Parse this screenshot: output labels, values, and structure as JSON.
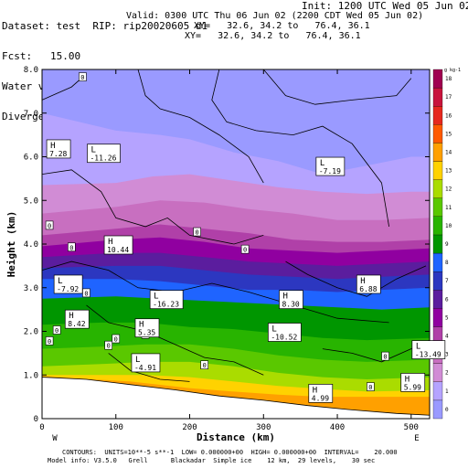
{
  "header": {
    "left_lines": [
      "Dataset: test  RIP: rip20020605 d1",
      "Fcst:   15.00",
      "Water vapor mixing ratio",
      "Divergence"
    ],
    "right_lines": [
      "Init: 1200 UTC Wed 05 Jun 02",
      "Valid: 0300 UTC Thu 06 Jun 02 (2200 CDT Wed 05 Jun 02)",
      "XY=   32.6, 34.2 to   76.4, 36.1",
      "XY=   32.6, 34.2 to   76.4, 36.1"
    ]
  },
  "footer": {
    "line1": "CONTOURS:  UNITS=10**-5 s**-1  LOW= 0.000000+00  HIGH= 0.000000+00  INTERVAL=    20.000",
    "line2": "Model info: V3.5.0   Grell      Blackadar  Simple ice    12 km,  29 levels,    30 sec"
  },
  "chart_data": {
    "type": "heatmap",
    "xlabel": "Distance (km)",
    "ylabel": "Height (km)",
    "xlim": [
      0,
      525
    ],
    "ylim": [
      0,
      8
    ],
    "xticks": [
      0,
      100,
      200,
      300,
      400,
      500
    ],
    "yticks": [
      0,
      1.0,
      2.0,
      3.0,
      4.0,
      5.0,
      6.0,
      7.0,
      8.0
    ],
    "ytick_labels": [
      "0",
      "1.0",
      "2.0",
      "3.0",
      "4.0",
      "5.0",
      "6.0",
      "7.0",
      "8.0"
    ],
    "x_end_labels": [
      "W",
      "E"
    ],
    "colorbar_unit": "g kg-1",
    "colorbar_levels": [
      0,
      1,
      2,
      3,
      4,
      5,
      6,
      7,
      8,
      9,
      10,
      11,
      12,
      13,
      14,
      15,
      16,
      17,
      18
    ],
    "colorbar_colors": [
      "#9a9aff",
      "#b5a3ff",
      "#d18cd5",
      "#c86fc0",
      "#b040a8",
      "#9000a0",
      "#5b1d9e",
      "#2c37c0",
      "#1f64ff",
      "#009600",
      "#28b400",
      "#5ac800",
      "#aadc00",
      "#ffd200",
      "#ffa000",
      "#ff5a00",
      "#e6281e",
      "#c8143c",
      "#a00050"
    ],
    "terrain_profile": [
      [
        0,
        0.95
      ],
      [
        60,
        0.9
      ],
      [
        120,
        0.78
      ],
      [
        180,
        0.66
      ],
      [
        240,
        0.52
      ],
      [
        300,
        0.42
      ],
      [
        360,
        0.3
      ],
      [
        420,
        0.2
      ],
      [
        480,
        0.12
      ],
      [
        525,
        0.08
      ]
    ],
    "moisture_bands": [
      {
        "level": 1,
        "profile": [
          [
            0,
            7.0
          ],
          [
            100,
            6.6
          ],
          [
            160,
            6.5
          ],
          [
            200,
            6.4
          ],
          [
            260,
            6.1
          ],
          [
            320,
            5.9
          ],
          [
            380,
            5.6
          ],
          [
            440,
            5.8
          ],
          [
            500,
            6.0
          ],
          [
            525,
            6.0
          ]
        ]
      },
      {
        "level": 2,
        "profile": [
          [
            0,
            5.35
          ],
          [
            100,
            5.4
          ],
          [
            150,
            5.55
          ],
          [
            200,
            5.6
          ],
          [
            260,
            5.45
          ],
          [
            320,
            5.3
          ],
          [
            380,
            5.2
          ],
          [
            440,
            5.15
          ],
          [
            500,
            5.2
          ],
          [
            525,
            5.2
          ]
        ]
      },
      {
        "level": 3,
        "profile": [
          [
            0,
            4.7
          ],
          [
            100,
            4.85
          ],
          [
            160,
            5.0
          ],
          [
            220,
            4.95
          ],
          [
            280,
            4.8
          ],
          [
            340,
            4.7
          ],
          [
            400,
            4.55
          ],
          [
            460,
            4.55
          ],
          [
            525,
            4.6
          ]
        ]
      },
      {
        "level": 4,
        "profile": [
          [
            0,
            4.2
          ],
          [
            100,
            4.35
          ],
          [
            160,
            4.45
          ],
          [
            220,
            4.35
          ],
          [
            280,
            4.25
          ],
          [
            340,
            4.1
          ],
          [
            400,
            4.05
          ],
          [
            460,
            4.05
          ],
          [
            525,
            4.1
          ]
        ]
      },
      {
        "level": 5,
        "profile": [
          [
            0,
            3.95
          ],
          [
            100,
            4.1
          ],
          [
            160,
            4.15
          ],
          [
            220,
            4.05
          ],
          [
            280,
            3.9
          ],
          [
            340,
            3.85
          ],
          [
            400,
            3.8
          ],
          [
            460,
            3.85
          ],
          [
            525,
            3.9
          ]
        ]
      },
      {
        "level": 6,
        "profile": [
          [
            0,
            3.7
          ],
          [
            100,
            3.8
          ],
          [
            160,
            3.8
          ],
          [
            220,
            3.7
          ],
          [
            280,
            3.6
          ],
          [
            340,
            3.55
          ],
          [
            400,
            3.5
          ],
          [
            460,
            3.55
          ],
          [
            525,
            3.6
          ]
        ]
      },
      {
        "level": 7,
        "profile": [
          [
            0,
            3.45
          ],
          [
            100,
            3.5
          ],
          [
            160,
            3.5
          ],
          [
            220,
            3.4
          ],
          [
            280,
            3.3
          ],
          [
            340,
            3.25
          ],
          [
            400,
            3.2
          ],
          [
            460,
            3.25
          ],
          [
            525,
            3.3
          ]
        ]
      },
      {
        "level": 8,
        "profile": [
          [
            0,
            3.2
          ],
          [
            100,
            3.2
          ],
          [
            160,
            3.15
          ],
          [
            220,
            3.05
          ],
          [
            280,
            2.95
          ],
          [
            340,
            2.95
          ],
          [
            400,
            2.9
          ],
          [
            460,
            2.95
          ],
          [
            525,
            3.0
          ]
        ]
      },
      {
        "level": 9,
        "profile": [
          [
            0,
            2.75
          ],
          [
            100,
            2.8
          ],
          [
            160,
            2.75
          ],
          [
            220,
            2.7
          ],
          [
            280,
            2.65
          ],
          [
            340,
            2.6
          ],
          [
            400,
            2.55
          ],
          [
            460,
            2.5
          ],
          [
            525,
            2.55
          ]
        ]
      },
      {
        "level": 10,
        "profile": [
          [
            0,
            2.15
          ],
          [
            80,
            2.2
          ],
          [
            140,
            2.2
          ],
          [
            200,
            2.1
          ],
          [
            260,
            2.05
          ],
          [
            320,
            1.95
          ],
          [
            380,
            1.85
          ],
          [
            440,
            1.8
          ],
          [
            525,
            1.85
          ]
        ]
      },
      {
        "level": 11,
        "profile": [
          [
            0,
            1.6
          ],
          [
            80,
            1.65
          ],
          [
            140,
            1.7
          ],
          [
            200,
            1.7
          ],
          [
            260,
            1.6
          ],
          [
            320,
            1.45
          ],
          [
            380,
            1.35
          ],
          [
            440,
            1.3
          ],
          [
            525,
            1.35
          ]
        ]
      },
      {
        "level": 12,
        "profile": [
          [
            0,
            1.2
          ],
          [
            80,
            1.25
          ],
          [
            140,
            1.3
          ],
          [
            200,
            1.3
          ],
          [
            260,
            1.2
          ],
          [
            320,
            1.05
          ],
          [
            380,
            0.95
          ],
          [
            440,
            0.9
          ],
          [
            525,
            0.95
          ]
        ]
      },
      {
        "level": 13,
        "profile": [
          [
            0,
            1.0
          ],
          [
            80,
            1.0
          ],
          [
            140,
            1.0
          ],
          [
            200,
            0.95
          ],
          [
            260,
            0.85
          ],
          [
            320,
            0.75
          ],
          [
            380,
            0.68
          ],
          [
            440,
            0.62
          ],
          [
            525,
            0.65
          ]
        ]
      },
      {
        "level": 14,
        "profile": [
          [
            0,
            0.97
          ],
          [
            120,
            0.85
          ],
          [
            200,
            0.7
          ],
          [
            260,
            0.62
          ],
          [
            320,
            0.55
          ],
          [
            380,
            0.5
          ],
          [
            440,
            0.5
          ],
          [
            525,
            0.5
          ]
        ]
      }
    ],
    "annotations": [
      {
        "text": "H",
        "sub": "7.28",
        "x": 10,
        "y": 6.2
      },
      {
        "text": "L",
        "sub": "-11.26",
        "x": 65,
        "y": 6.1
      },
      {
        "text": "L",
        "sub": "-7.19",
        "x": 375,
        "y": 5.8
      },
      {
        "text": "H",
        "sub": "10.44",
        "x": 88,
        "y": 4.0
      },
      {
        "text": "L",
        "sub": "-7.92",
        "x": 20,
        "y": 3.1
      },
      {
        "text": "H",
        "sub": "6.88",
        "x": 430,
        "y": 3.1
      },
      {
        "text": "L",
        "sub": "-16.23",
        "x": 150,
        "y": 2.75
      },
      {
        "text": "H",
        "sub": "8.30",
        "x": 325,
        "y": 2.75
      },
      {
        "text": "H",
        "sub": "8.42",
        "x": 35,
        "y": 2.3
      },
      {
        "text": "H",
        "sub": "5.35",
        "x": 130,
        "y": 2.1
      },
      {
        "text": "L",
        "sub": "-10.52",
        "x": 310,
        "y": 2.0
      },
      {
        "text": "L",
        "sub": "-13.49",
        "x": 505,
        "y": 1.6
      },
      {
        "text": "L",
        "sub": "-4.91",
        "x": 125,
        "y": 1.3
      },
      {
        "text": "H",
        "sub": "5.99",
        "x": 490,
        "y": 0.85
      },
      {
        "text": "H",
        "sub": "4.99",
        "x": 365,
        "y": 0.6
      }
    ],
    "zero_labels": [
      [
        55,
        7.8
      ],
      [
        10,
        4.4
      ],
      [
        40,
        3.9
      ],
      [
        210,
        4.25
      ],
      [
        275,
        3.85
      ],
      [
        60,
        2.85
      ],
      [
        20,
        2.0
      ],
      [
        100,
        1.8
      ],
      [
        140,
        1.9
      ],
      [
        220,
        1.2
      ],
      [
        90,
        1.65
      ],
      [
        465,
        1.4
      ],
      [
        445,
        0.7
      ],
      [
        10,
        1.75
      ]
    ]
  }
}
